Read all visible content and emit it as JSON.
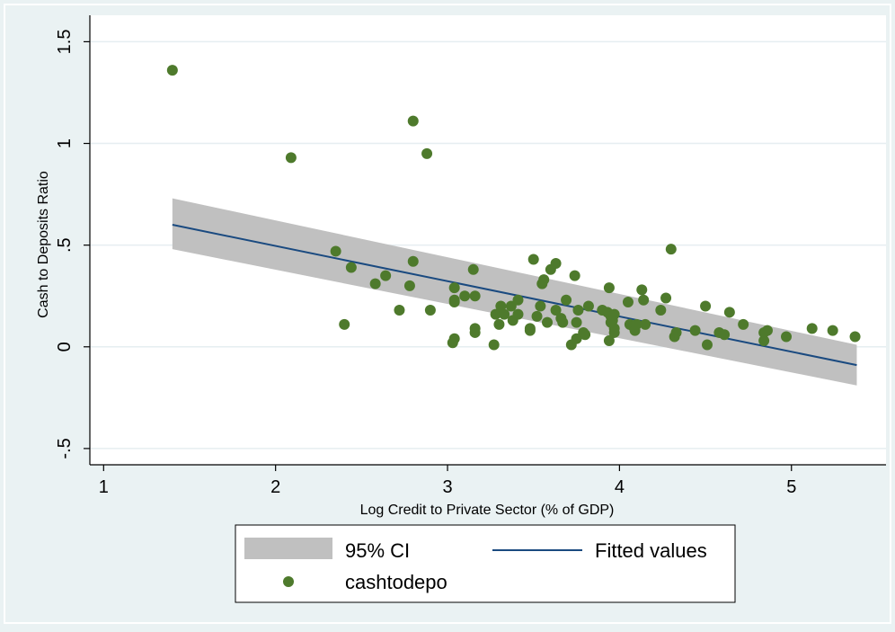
{
  "chart_data": {
    "type": "scatter",
    "xlabel": "Log Credit to Private Sector (% of GDP)",
    "ylabel": "Cash to Deposits Ratio",
    "xlim": [
      0.92,
      5.55
    ],
    "ylim": [
      -0.58,
      1.63
    ],
    "x_ticks": [
      1,
      2,
      3,
      4,
      5
    ],
    "x_tick_labels": [
      "1",
      "2",
      "3",
      "4",
      "5"
    ],
    "y_ticks": [
      -0.5,
      0,
      0.5,
      1,
      1.5
    ],
    "y_tick_labels": [
      "-.5",
      "0",
      ".5",
      "1",
      "1.5"
    ],
    "grid": "horizontal",
    "legend_position": "bottom",
    "series": [
      {
        "name": "95% CI",
        "kind": "band",
        "color": "#c0c0c0",
        "x": [
          1.4,
          5.38
        ],
        "lower": [
          0.48,
          -0.19
        ],
        "upper": [
          0.73,
          0.01
        ]
      },
      {
        "name": "Fitted values",
        "kind": "line",
        "color": "#1a4a80",
        "x": [
          1.4,
          5.38
        ],
        "y": [
          0.6,
          -0.09
        ]
      },
      {
        "name": "cashtodepo",
        "kind": "points",
        "color": "#4e7a2c",
        "points": [
          [
            1.4,
            1.36
          ],
          [
            2.09,
            0.93
          ],
          [
            2.8,
            1.11
          ],
          [
            2.88,
            0.95
          ],
          [
            4.3,
            0.48
          ],
          [
            2.35,
            0.47
          ],
          [
            2.44,
            0.39
          ],
          [
            2.8,
            0.42
          ],
          [
            2.4,
            0.11
          ],
          [
            2.58,
            0.31
          ],
          [
            2.64,
            0.35
          ],
          [
            2.72,
            0.18
          ],
          [
            2.78,
            0.3
          ],
          [
            2.9,
            0.18
          ],
          [
            3.04,
            0.29
          ],
          [
            3.04,
            0.23
          ],
          [
            3.04,
            0.22
          ],
          [
            3.1,
            0.25
          ],
          [
            3.15,
            0.38
          ],
          [
            3.16,
            0.25
          ],
          [
            3.03,
            0.02
          ],
          [
            3.04,
            0.04
          ],
          [
            3.16,
            0.09
          ],
          [
            3.16,
            0.07
          ],
          [
            3.27,
            0.01
          ],
          [
            3.28,
            0.16
          ],
          [
            3.3,
            0.11
          ],
          [
            3.31,
            0.2
          ],
          [
            3.33,
            0.16
          ],
          [
            3.37,
            0.2
          ],
          [
            3.38,
            0.13
          ],
          [
            3.41,
            0.16
          ],
          [
            3.41,
            0.23
          ],
          [
            3.48,
            0.09
          ],
          [
            3.48,
            0.08
          ],
          [
            3.5,
            0.43
          ],
          [
            3.52,
            0.15
          ],
          [
            3.54,
            0.2
          ],
          [
            3.55,
            0.31
          ],
          [
            3.56,
            0.33
          ],
          [
            3.58,
            0.12
          ],
          [
            3.6,
            0.38
          ],
          [
            3.63,
            0.41
          ],
          [
            3.63,
            0.18
          ],
          [
            3.66,
            0.14
          ],
          [
            3.67,
            0.12
          ],
          [
            3.69,
            0.23
          ],
          [
            3.72,
            0.01
          ],
          [
            3.74,
            0.35
          ],
          [
            3.75,
            0.12
          ],
          [
            3.75,
            0.04
          ],
          [
            3.76,
            0.18
          ],
          [
            3.79,
            0.07
          ],
          [
            3.8,
            0.06
          ],
          [
            3.82,
            0.2
          ],
          [
            3.9,
            0.18
          ],
          [
            3.93,
            0.17
          ],
          [
            3.94,
            0.29
          ],
          [
            3.94,
            0.03
          ],
          [
            3.95,
            0.12
          ],
          [
            3.95,
            0.15
          ],
          [
            3.96,
            0.13
          ],
          [
            3.97,
            0.16
          ],
          [
            3.97,
            0.09
          ],
          [
            3.97,
            0.07
          ],
          [
            4.05,
            0.22
          ],
          [
            4.06,
            0.11
          ],
          [
            4.08,
            0.1
          ],
          [
            4.09,
            0.08
          ],
          [
            4.1,
            0.11
          ],
          [
            4.13,
            0.28
          ],
          [
            4.14,
            0.23
          ],
          [
            4.15,
            0.11
          ],
          [
            4.24,
            0.18
          ],
          [
            4.27,
            0.24
          ],
          [
            4.32,
            0.05
          ],
          [
            4.33,
            0.07
          ],
          [
            4.44,
            0.08
          ],
          [
            4.5,
            0.2
          ],
          [
            4.51,
            0.01
          ],
          [
            4.58,
            0.07
          ],
          [
            4.61,
            0.06
          ],
          [
            4.64,
            0.17
          ],
          [
            4.72,
            0.11
          ],
          [
            4.84,
            0.03
          ],
          [
            4.84,
            0.07
          ],
          [
            4.86,
            0.08
          ],
          [
            4.97,
            0.05
          ],
          [
            5.12,
            0.09
          ],
          [
            5.24,
            0.08
          ],
          [
            5.37,
            0.05
          ]
        ]
      }
    ]
  }
}
